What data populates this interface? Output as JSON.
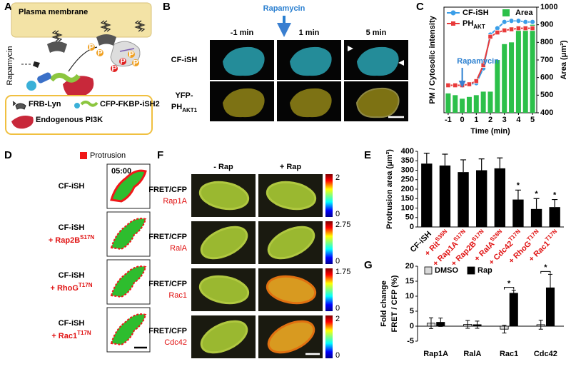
{
  "panels": {
    "A": {
      "letter": "A",
      "membrane": "Plasma membrane",
      "drug": "Rapamycin",
      "phospho": "P",
      "legend": [
        "FRB-Lyn",
        "CFP-FKBP-iSH2",
        "Endogenous PI3K"
      ]
    },
    "B": {
      "letter": "B",
      "drug": "Rapamycin",
      "columns": [
        "-1 min",
        "1 min",
        "5 min"
      ],
      "rows": [
        {
          "label": "CF-iSH"
        },
        {
          "label": "YFP-",
          "label2": "PH",
          "label2_sub": "AKT1"
        }
      ]
    },
    "C": {
      "letter": "C"
    },
    "D": {
      "letter": "D",
      "legend": "Protrusion",
      "time": "05:00",
      "rows": [
        {
          "label": "CF-iSH"
        },
        {
          "label": "CF-iSH",
          "mutant": "+ Rap2B",
          "mutant_sup": "S17N"
        },
        {
          "label": "CF-iSH",
          "mutant": "+ RhoG",
          "mutant_sup": "T17N"
        },
        {
          "label": "CF-iSH",
          "mutant": "+ Rac1",
          "mutant_sup": "T17N"
        }
      ]
    },
    "E": {
      "letter": "E"
    },
    "F": {
      "letter": "F",
      "columns": [
        "- Rap",
        "+ Rap"
      ],
      "rows": [
        {
          "label": "FRET/CFP",
          "sensor": "Rap1A",
          "scale_max": 2,
          "scale_min": 0
        },
        {
          "label": "FRET/CFP",
          "sensor": "RalA",
          "scale_max": 2.75,
          "scale_min": 0
        },
        {
          "label": "FRET/CFP",
          "sensor": "Rac1",
          "scale_max": 1.75,
          "scale_min": 0
        },
        {
          "label": "FRET/CFP",
          "sensor": "Cdc42",
          "scale_max": 2,
          "scale_min": 0
        }
      ]
    },
    "G": {
      "letter": "G"
    }
  },
  "chart_data": [
    {
      "type": "combo",
      "xlabel": "Time (min)",
      "ylabel": "PM / Cytosolic intensity",
      "y2label": "Area (μm²)",
      "x": [
        -1,
        -0.5,
        0,
        0.5,
        1,
        1.5,
        2,
        2.5,
        3,
        3.5,
        4,
        4.5,
        5
      ],
      "xlim": [
        -1.3,
        5.3
      ],
      "xticks": [
        -1,
        0,
        1,
        2,
        3,
        4,
        5
      ],
      "ylim": [
        0,
        1
      ],
      "y2lim": [
        400,
        1000
      ],
      "y2ticks": [
        400,
        500,
        600,
        700,
        800,
        900,
        1000
      ],
      "annotation": {
        "text": "Rapamycin",
        "x": 0
      },
      "series": [
        {
          "name": "Area",
          "type": "bar",
          "axis": "y2",
          "color": "#2cc04a",
          "values": [
            510,
            500,
            480,
            490,
            500,
            520,
            520,
            700,
            790,
            800,
            870,
            890,
            900
          ]
        },
        {
          "name": "CF-iSH",
          "type": "line",
          "color": "#3a9ee8",
          "values": [
            0.26,
            0.26,
            0.26,
            0.27,
            0.28,
            0.42,
            0.74,
            0.8,
            0.86,
            0.87,
            0.87,
            0.86,
            0.86
          ]
        },
        {
          "name": "PH",
          "name_sub": "AKT",
          "type": "line",
          "color": "#e83a3a",
          "values": [
            0.26,
            0.26,
            0.26,
            0.27,
            0.3,
            0.45,
            0.72,
            0.76,
            0.78,
            0.79,
            0.8,
            0.8,
            0.8
          ]
        }
      ]
    },
    {
      "type": "bar",
      "ylabel": "Protrusion area (μm²)",
      "categories": [
        "CF-iSH",
        "+ Rit",
        "+ Rap1A",
        "+ Rap2B",
        "+ RalA",
        "+ Cdc42",
        "+ RhoG",
        "+ Rac1"
      ],
      "category_sups": [
        null,
        "S35N",
        "S17N",
        "S17N",
        "S28N",
        "T17N",
        "T17N",
        "T17N"
      ],
      "label_colors": [
        "#000000",
        "#e01010",
        "#e01010",
        "#e01010",
        "#e01010",
        "#e01010",
        "#e01010",
        "#e01010"
      ],
      "values": [
        335,
        325,
        290,
        300,
        310,
        145,
        95,
        105
      ],
      "errors": [
        55,
        60,
        65,
        60,
        55,
        50,
        55,
        40
      ],
      "significance": [
        null,
        null,
        null,
        null,
        null,
        "*",
        "*",
        "*"
      ],
      "color": "#000000",
      "ylim": [
        0,
        400
      ],
      "yticks": [
        0,
        50,
        100,
        150,
        200,
        250,
        300,
        350,
        400
      ]
    },
    {
      "type": "grouped_bar",
      "ylabel": [
        "Fold change",
        "FRET / CFP (%)"
      ],
      "categories": [
        "Rap1A",
        "RalA",
        "Rac1",
        "Cdc42"
      ],
      "series": [
        {
          "name": "DMSO",
          "color": "#d9d9d9",
          "values": [
            1,
            0.6,
            -1,
            0.5
          ],
          "errors": [
            1.8,
            1.3,
            1.3,
            1.5
          ]
        },
        {
          "name": "Rap",
          "color": "#000000",
          "values": [
            1.3,
            0.5,
            11,
            12.8
          ],
          "errors": [
            1.4,
            1.2,
            1,
            4.5
          ]
        }
      ],
      "significance": [
        null,
        null,
        "*",
        "*"
      ],
      "legend": "top-left",
      "ylim": [
        -5,
        20
      ],
      "yticks": [
        -5,
        0,
        5,
        10,
        15,
        20
      ]
    }
  ]
}
